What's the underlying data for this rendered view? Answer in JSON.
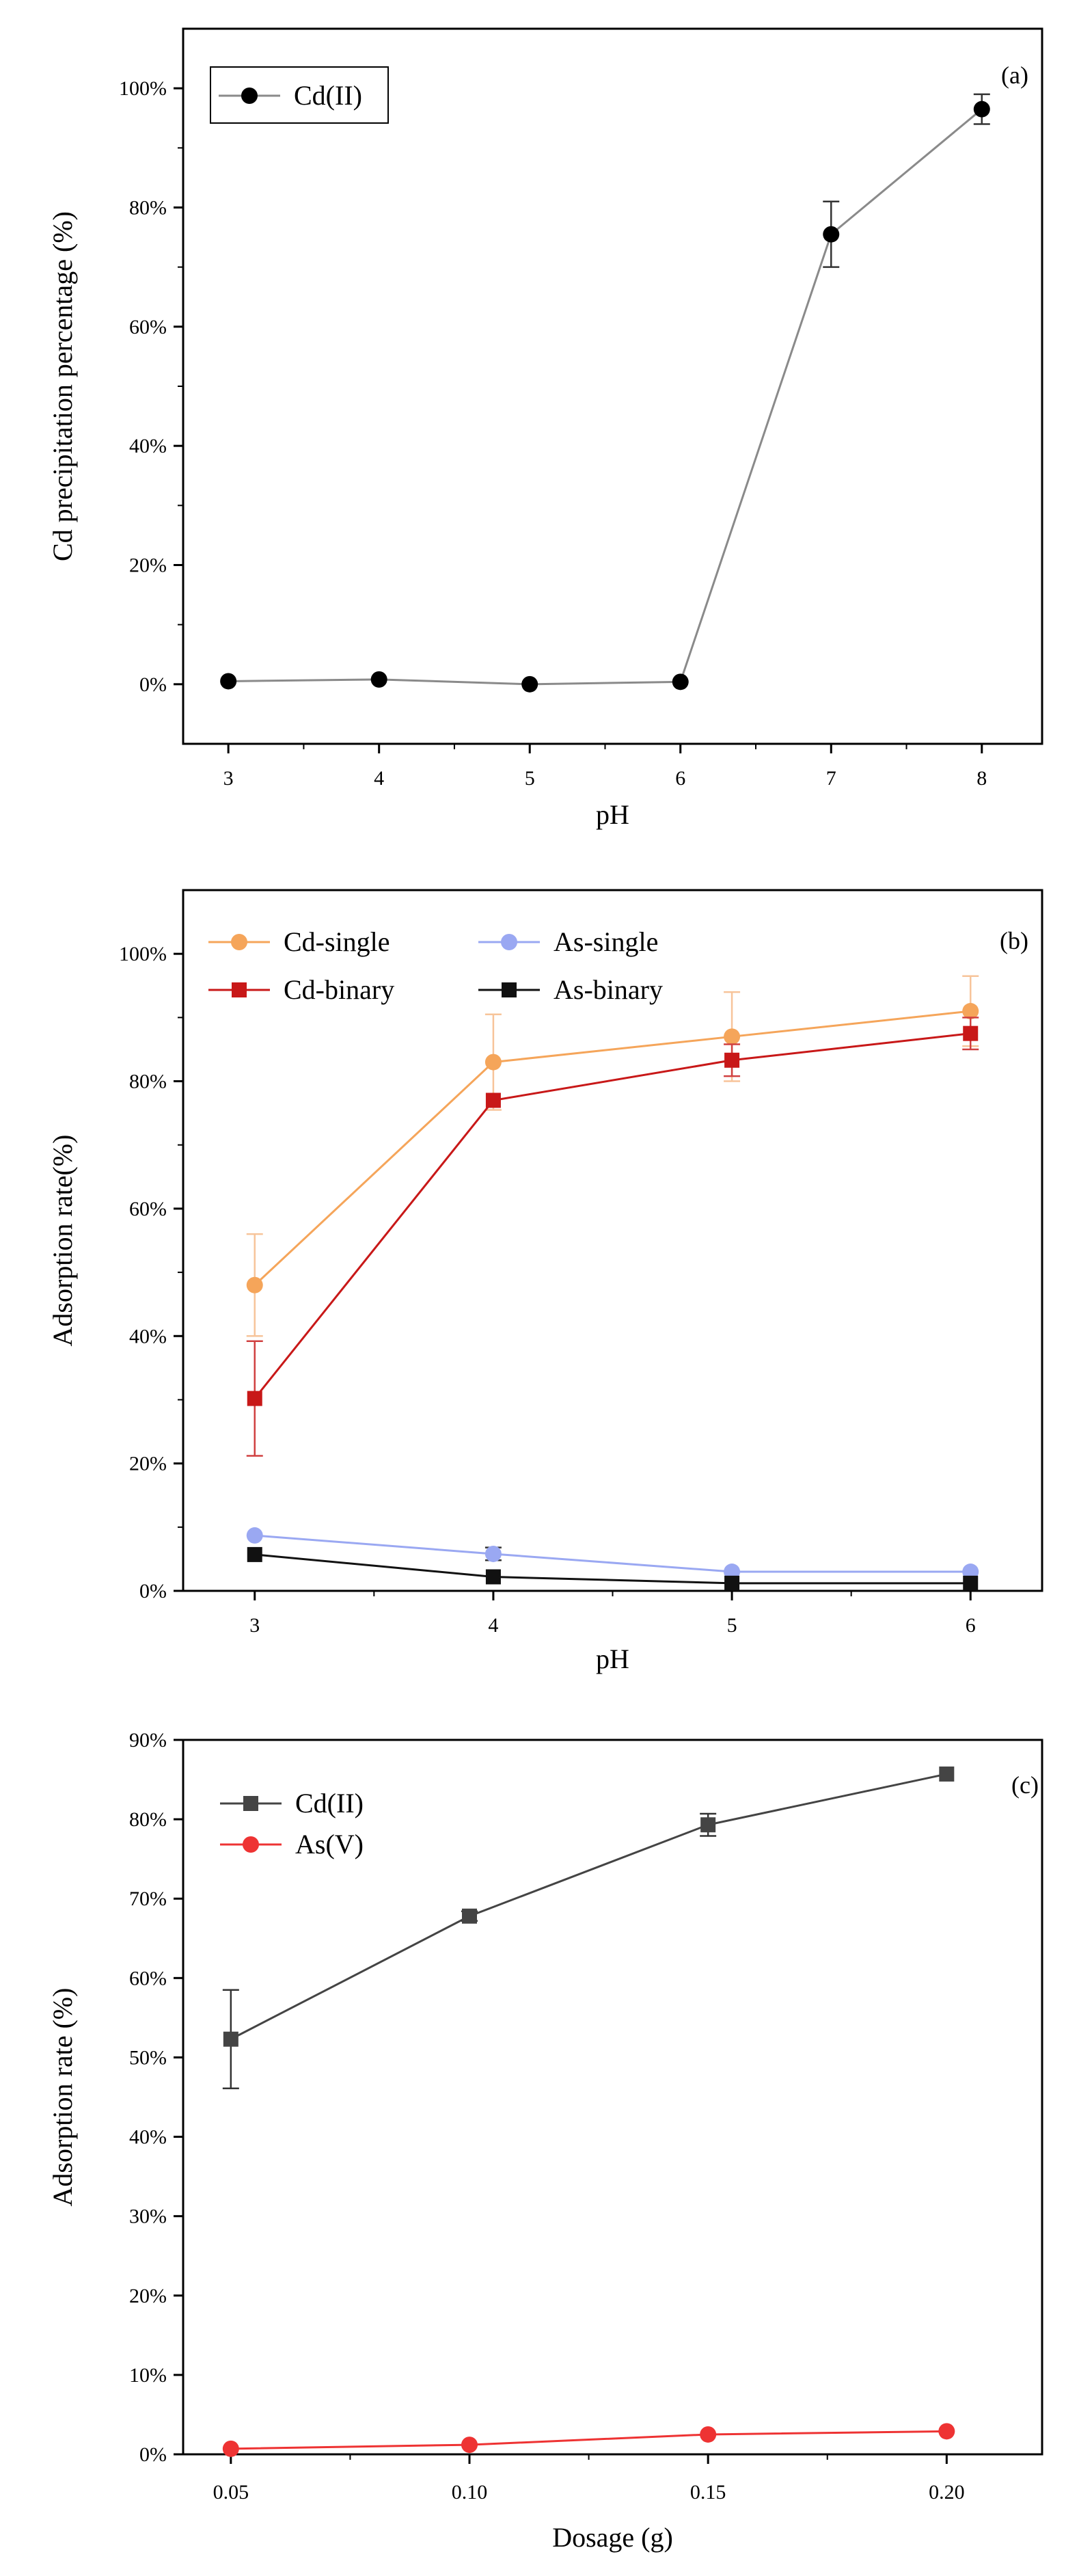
{
  "chart_data": [
    {
      "type": "line",
      "panel_label": "(a)",
      "xlabel": "pH",
      "ylabel": "Cd precipitation percentage (%)",
      "xlim": [
        2.7,
        8.4
      ],
      "ylim": [
        -10,
        110
      ],
      "x_ticks": [
        "3",
        "4",
        "5",
        "6",
        "7",
        "8"
      ],
      "y_ticks": [
        "0%",
        "20%",
        "40%",
        "60%",
        "80%",
        "100%"
      ],
      "legend_position": "top-left",
      "series": [
        {
          "name": "Cd(II)",
          "color": "#000000",
          "line_color": "#8a8a8a",
          "marker": "circle",
          "x": [
            3,
            4,
            5,
            6,
            7,
            8
          ],
          "values": [
            0.5,
            0.8,
            0.0,
            0.4,
            75.5,
            96.5
          ],
          "errors": [
            0,
            0,
            0,
            0,
            5.5,
            2.5
          ]
        }
      ]
    },
    {
      "type": "line",
      "panel_label": "(b)",
      "xlabel": "pH",
      "ylabel": "Adsorption rate(%)",
      "xlim": [
        2.7,
        6.3
      ],
      "ylim": [
        0,
        110
      ],
      "x_ticks": [
        "3",
        "4",
        "5",
        "6"
      ],
      "y_ticks": [
        "0%",
        "20%",
        "40%",
        "60%",
        "80%",
        "100%"
      ],
      "legend_position": "top-left",
      "series": [
        {
          "name": "Cd-single",
          "color": "#f5a55a",
          "marker": "circle",
          "x": [
            3,
            4,
            5,
            6
          ],
          "values": [
            48.0,
            83.0,
            87.0,
            91.0
          ],
          "errors": [
            8,
            7.5,
            7,
            5.5
          ]
        },
        {
          "name": "As-single",
          "color": "#9aa8f2",
          "marker": "circle",
          "x": [
            3,
            4,
            5,
            6
          ],
          "values": [
            8.7,
            5.8,
            3.0,
            3.0
          ],
          "errors": [
            0,
            1,
            0,
            0
          ]
        },
        {
          "name": "Cd-binary",
          "color": "#c81818",
          "marker": "square",
          "x": [
            3,
            4,
            5,
            6
          ],
          "values": [
            30.2,
            77.0,
            83.3,
            87.5
          ],
          "errors": [
            9,
            0,
            2.5,
            2.5
          ]
        },
        {
          "name": "As-binary",
          "color": "#111111",
          "marker": "square",
          "x": [
            3,
            4,
            5,
            6
          ],
          "values": [
            5.7,
            2.2,
            1.2,
            1.2
          ],
          "errors": [
            0,
            0,
            0,
            0
          ]
        }
      ]
    },
    {
      "type": "line",
      "panel_label": "(c)",
      "xlabel": "Dosage (g)",
      "ylabel": "Adsorption rate (%)",
      "xlim": [
        0.04,
        0.22
      ],
      "ylim": [
        0,
        90
      ],
      "x_ticks": [
        "0.05",
        "0.10",
        "0.15",
        "0.20"
      ],
      "y_ticks": [
        "0%",
        "10%",
        "20%",
        "30%",
        "40%",
        "50%",
        "60%",
        "70%",
        "80%",
        "90%"
      ],
      "legend_position": "top-left",
      "series": [
        {
          "name": "Cd(II)",
          "color": "#444444",
          "marker": "square",
          "x": [
            0.05,
            0.1,
            0.15,
            0.2
          ],
          "values": [
            52.3,
            67.8,
            79.3,
            85.7
          ],
          "errors": [
            6.2,
            0.6,
            1.4,
            0
          ]
        },
        {
          "name": "As(V)",
          "color": "#ee3333",
          "marker": "circle",
          "x": [
            0.05,
            0.1,
            0.15,
            0.2
          ],
          "values": [
            0.7,
            1.2,
            2.5,
            2.9
          ],
          "errors": [
            0,
            0,
            0,
            0
          ]
        }
      ]
    }
  ]
}
